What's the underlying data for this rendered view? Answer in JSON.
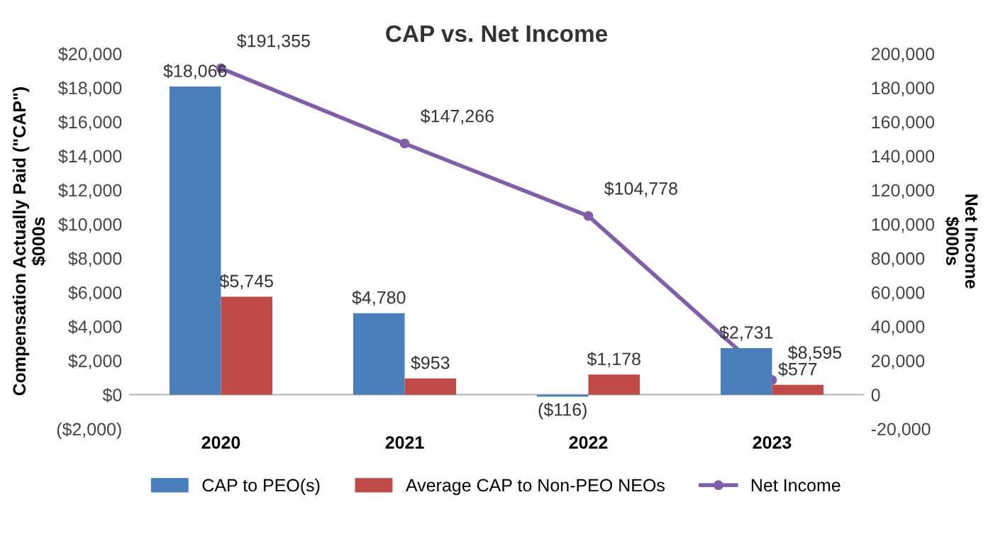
{
  "chart_data": {
    "type": "bar",
    "title": "CAP vs. Net Income",
    "categories": [
      "2020",
      "2021",
      "2022",
      "2023"
    ],
    "ylabel": "Compensation Actually Paid (\"CAP\")\n$000s",
    "y2label": "Net Income\n$000s",
    "series": [
      {
        "name": "CAP to PEO(s)",
        "color": "#4a7ebb",
        "values": [
          18066,
          4780,
          -116,
          2731
        ],
        "value_labels": [
          "$18,066",
          "$4,780",
          "($116)",
          "$2,731"
        ]
      },
      {
        "name": "Average CAP to Non-PEO NEOs",
        "color": "#be4b48",
        "values": [
          5745,
          953,
          1178,
          577
        ],
        "value_labels": [
          "$5,745",
          "$953",
          "$1,178",
          "$577"
        ]
      },
      {
        "name": "Net Income",
        "type": "line",
        "axis": "y2",
        "color": "#7f5fa8",
        "marker": "circle",
        "line_style": "solid",
        "values": [
          191355,
          147266,
          104778,
          8595
        ],
        "value_labels": [
          "$191,355",
          "$147,266",
          "$104,778",
          "$8,595"
        ]
      }
    ],
    "ylim": [
      -2000,
      20000
    ],
    "yticks": [
      {
        "value": -2000,
        "label": "($2,000)"
      },
      {
        "value": 0,
        "label": "$0"
      },
      {
        "value": 2000,
        "label": "$2,000"
      },
      {
        "value": 4000,
        "label": "$4,000"
      },
      {
        "value": 6000,
        "label": "$6,000"
      },
      {
        "value": 8000,
        "label": "$8,000"
      },
      {
        "value": 10000,
        "label": "$10,000"
      },
      {
        "value": 12000,
        "label": "$12,000"
      },
      {
        "value": 14000,
        "label": "$14,000"
      },
      {
        "value": 16000,
        "label": "$16,000"
      },
      {
        "value": 18000,
        "label": "$18,000"
      },
      {
        "value": 20000,
        "label": "$20,000"
      }
    ],
    "y2lim": [
      -20000,
      200000
    ],
    "y2ticks": [
      {
        "value": -20000,
        "label": "-20,000"
      },
      0,
      {
        "value": 20000,
        "label": "20,000"
      },
      {
        "value": 40000,
        "label": "40,000"
      },
      {
        "value": 60000,
        "label": "60,000"
      },
      {
        "value": 80000,
        "label": "80,000"
      },
      {
        "value": 100000,
        "label": "100,000"
      },
      {
        "value": 120000,
        "label": "120,000"
      },
      {
        "value": 140000,
        "label": "140,000"
      },
      {
        "value": 160000,
        "label": "160,000"
      },
      {
        "value": 180000,
        "label": "180,000"
      },
      {
        "value": 200000,
        "label": "200,000"
      }
    ],
    "grid": false,
    "legend": "bottom"
  }
}
